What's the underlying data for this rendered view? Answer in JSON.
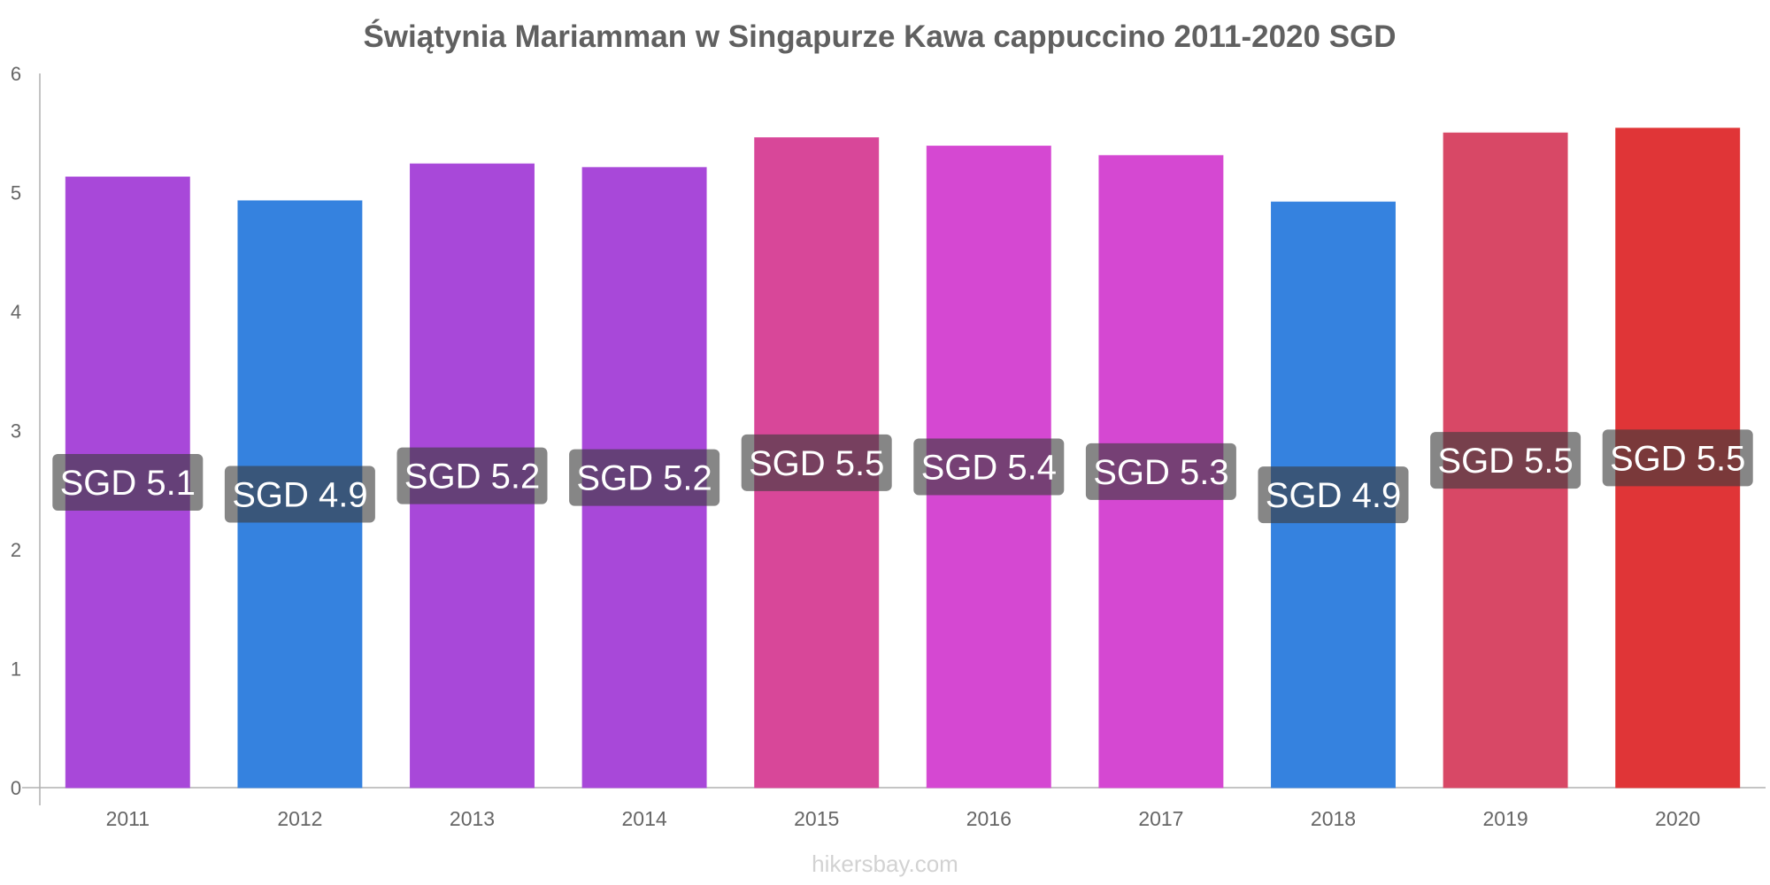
{
  "chart_data": {
    "type": "bar",
    "title": "Świątynia Mariamman w Singapurze Kawa cappuccino 2011-2020 SGD",
    "xlabel": "",
    "ylabel": "",
    "ylim": [
      0,
      6
    ],
    "yticks": [
      0,
      1,
      2,
      3,
      4,
      5,
      6
    ],
    "categories": [
      "2011",
      "2012",
      "2013",
      "2014",
      "2015",
      "2016",
      "2017",
      "2018",
      "2019",
      "2020"
    ],
    "values": [
      5.13,
      4.93,
      5.24,
      5.21,
      5.46,
      5.39,
      5.31,
      4.92,
      5.5,
      5.54
    ],
    "data_labels": [
      "SGD 5.1",
      "SGD 4.9",
      "SGD 5.2",
      "SGD 5.2",
      "SGD 5.5",
      "SGD 5.4",
      "SGD 5.3",
      "SGD 4.9",
      "SGD 5.5",
      "SGD 5.5"
    ],
    "colors": [
      "#a848d9",
      "#3582df",
      "#a848d9",
      "#a848d9",
      "#d84799",
      "#d548d2",
      "#d548d2",
      "#3582df",
      "#d84866",
      "#e03537"
    ],
    "label_bg_colors": [
      "#502670",
      "#1b426f",
      "#502670",
      "#502670",
      "#6b2a55",
      "#6b2670",
      "#6b2670",
      "#1b426f",
      "#6b2a37",
      "#6f1d1e"
    ],
    "grid": false,
    "legend": "none"
  },
  "watermark": "hikersbay.com"
}
